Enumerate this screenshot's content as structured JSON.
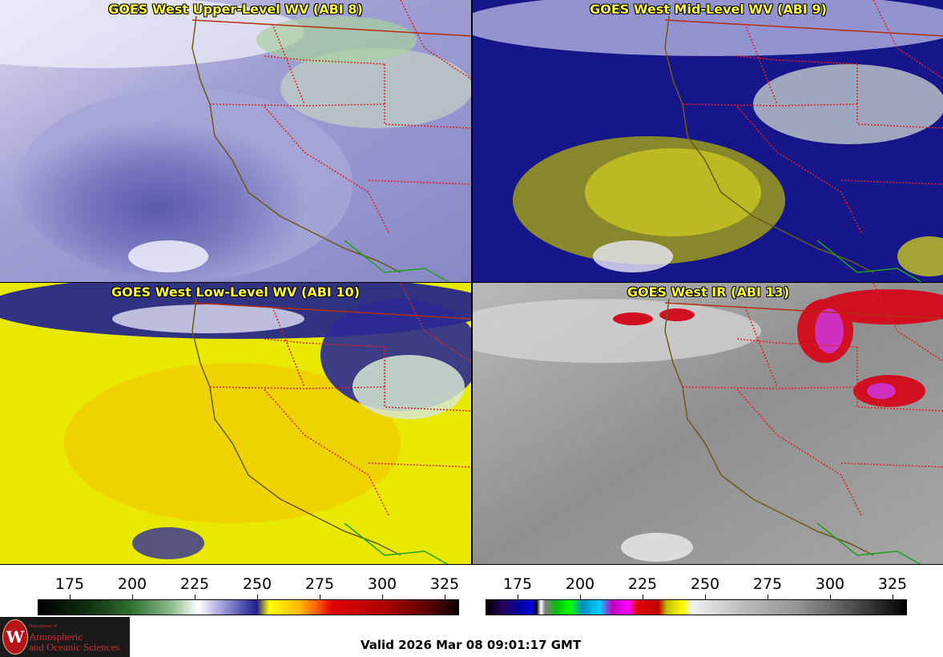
{
  "panels": [
    {
      "id": "ul",
      "title": "GOES West Upper-Level WV (ABI 8)",
      "scheme": "wv-upper"
    },
    {
      "id": "ml",
      "title": "GOES West Mid-Level WV (ABI 9)",
      "scheme": "wv-mid"
    },
    {
      "id": "ll",
      "title": "GOES West Low-Level WV (ABI 10)",
      "scheme": "wv-low"
    },
    {
      "id": "ir",
      "title": "GOES West IR (ABI 13)",
      "scheme": "ir"
    }
  ],
  "colorbars": {
    "wv": {
      "ticks": [
        "175",
        "200",
        "225",
        "250",
        "275",
        "300",
        "325"
      ]
    },
    "ir": {
      "ticks": [
        "175",
        "200",
        "225",
        "250",
        "275",
        "300",
        "325"
      ]
    }
  },
  "logo": {
    "line_small": "Department of",
    "line1": "Atmospheric",
    "line2": "and Oceanic Sciences",
    "seal_letter": "W"
  },
  "valid_time": "Valid 2026 Mar 08 09:01:17 GMT",
  "colors": {
    "coastline": "#6b5a1a",
    "state_borders": "#e02020",
    "country_border": "#b03010",
    "mexico_border": "#1fa01f",
    "title_text": "#ffff33"
  }
}
